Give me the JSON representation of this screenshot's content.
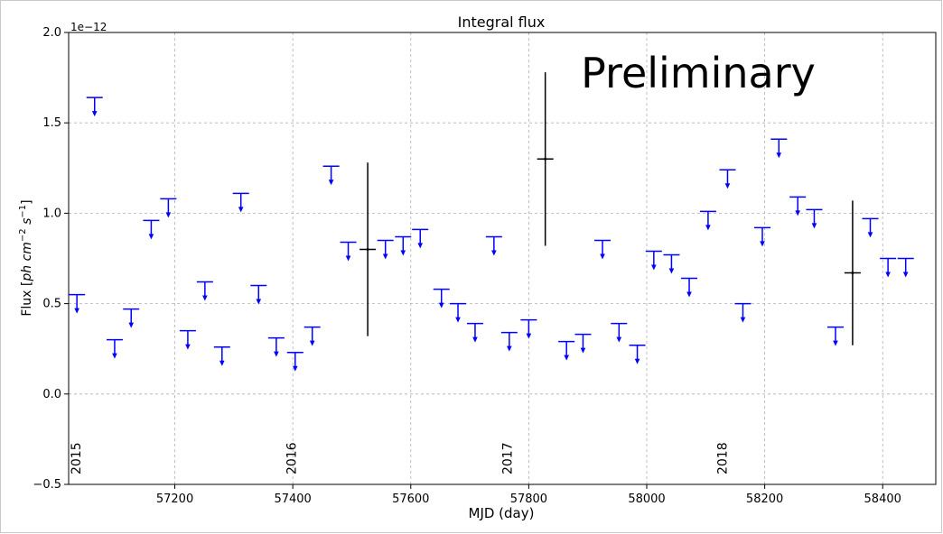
{
  "chart_data": {
    "type": "scatter",
    "title": "Integral flux",
    "xlabel": "MJD (day)",
    "ylabel": "Flux [ph cm^-2 s^-1]",
    "y_multiplier": "1e−12",
    "xlim": [
      57020,
      58490
    ],
    "ylim": [
      -0.5,
      2.0
    ],
    "x_ticks": [
      57200,
      57400,
      57600,
      57800,
      58000,
      58200,
      58400
    ],
    "y_ticks": [
      -0.5,
      0.0,
      0.5,
      1.0,
      1.5,
      2.0
    ],
    "y_tick_labels": [
      "−0.5",
      "0.0",
      "0.5",
      "1.0",
      "1.5",
      "2.0"
    ],
    "grid": true,
    "annotation": "Preliminary",
    "year_markers": [
      {
        "label": "2015",
        "x": 57023
      },
      {
        "label": "2016",
        "x": 57388
      },
      {
        "label": "2017",
        "x": 57754
      },
      {
        "label": "2018",
        "x": 58119
      }
    ],
    "series": [
      {
        "kind": "upper_limits",
        "color": "#0000ff",
        "x": [
          57034,
          57064,
          57098,
          57126,
          57160,
          57189,
          57222,
          57251,
          57280,
          57312,
          57342,
          57372,
          57404,
          57433,
          57465,
          57494,
          57557,
          57587,
          57616,
          57652,
          57680,
          57709,
          57741,
          57767,
          57800,
          57864,
          57892,
          57925,
          57953,
          57984,
          58012,
          58042,
          58072,
          58104,
          58137,
          58163,
          58196,
          58224,
          58256,
          58284,
          58320,
          58379,
          58409,
          58439
        ],
        "y": [
          0.55,
          1.64,
          0.3,
          0.47,
          0.96,
          1.08,
          0.35,
          0.62,
          0.26,
          1.11,
          0.6,
          0.31,
          0.23,
          0.37,
          1.26,
          0.84,
          0.85,
          0.87,
          0.91,
          0.58,
          0.5,
          0.39,
          0.87,
          0.34,
          0.41,
          0.29,
          0.33,
          0.85,
          0.39,
          0.27,
          0.79,
          0.77,
          0.64,
          1.01,
          1.24,
          0.5,
          0.92,
          1.41,
          1.09,
          1.02,
          0.37,
          0.97,
          0.75,
          0.75
        ]
      },
      {
        "kind": "measurements",
        "color": "#000000",
        "x": [
          57527,
          57828,
          58349
        ],
        "y": [
          0.8,
          1.3,
          0.67
        ],
        "yerr": [
          0.48,
          0.48,
          0.4
        ]
      }
    ]
  }
}
